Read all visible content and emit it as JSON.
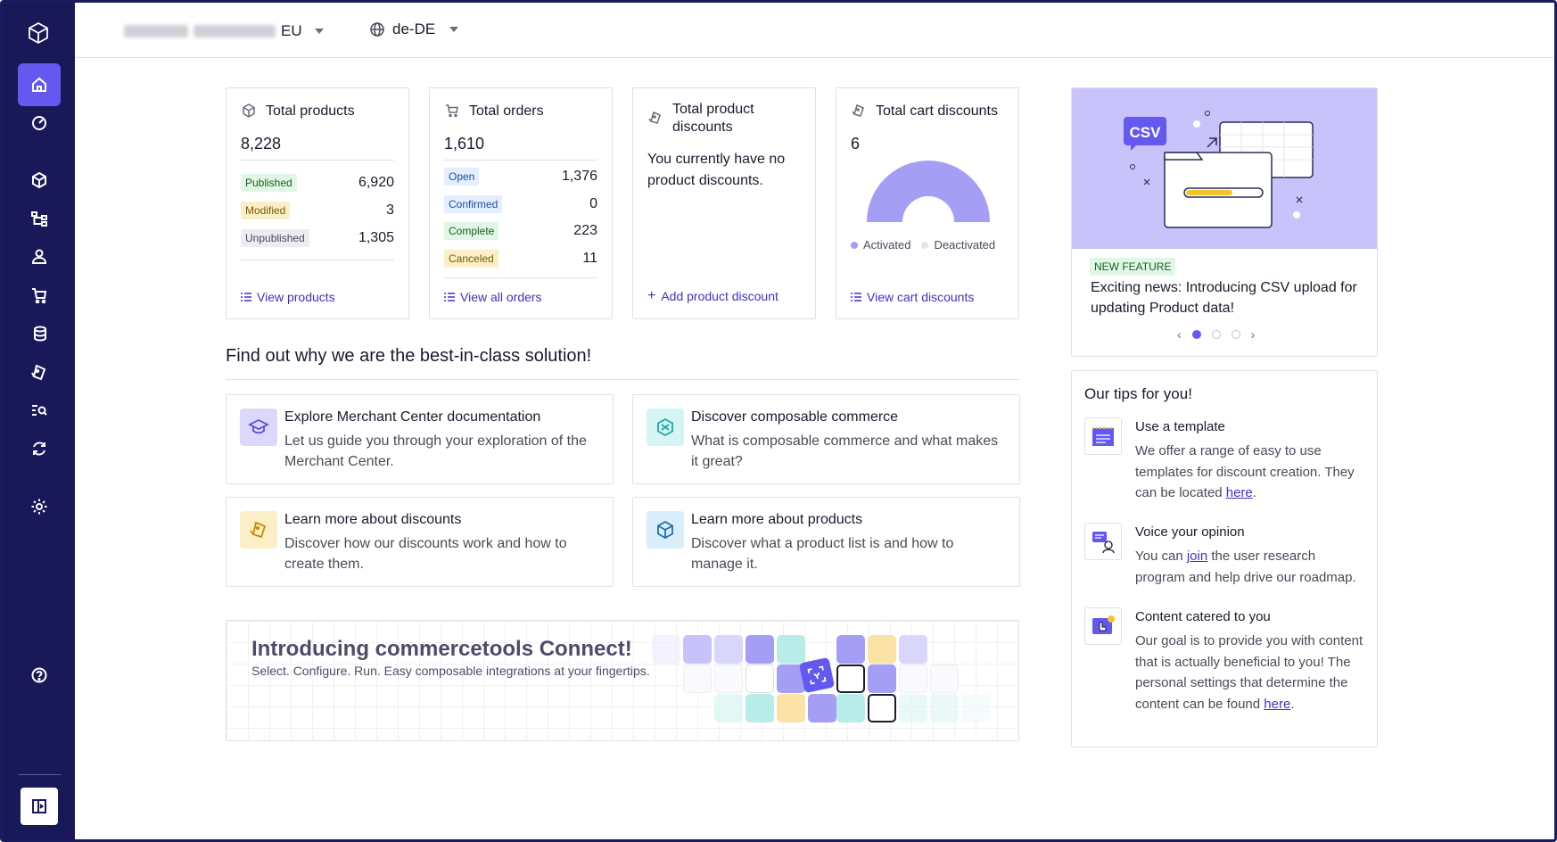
{
  "topbar": {
    "project_suffix": "EU",
    "locale": "de-DE"
  },
  "stats": {
    "products": {
      "title": "Total products",
      "total": "8,228",
      "rows": [
        {
          "label": "Published",
          "value": "6,920"
        },
        {
          "label": "Modified",
          "value": "3"
        },
        {
          "label": "Unpublished",
          "value": "1,305"
        }
      ],
      "link": "View products"
    },
    "orders": {
      "title": "Total orders",
      "total": "1,610",
      "rows": [
        {
          "label": "Open",
          "value": "1,376"
        },
        {
          "label": "Confirmed",
          "value": "0"
        },
        {
          "label": "Complete",
          "value": "223"
        },
        {
          "label": "Canceled",
          "value": "11"
        }
      ],
      "link": "View all orders"
    },
    "product_discounts": {
      "title_line1": "Total product",
      "title_line2": "discounts",
      "text": "You currently have no product discounts.",
      "link": "Add product discount"
    },
    "cart_discounts": {
      "title": "Total cart discounts",
      "total": "6",
      "legend_activated": "Activated",
      "legend_deactivated": "Deactivated",
      "link": "View cart discounts",
      "activated_fraction": 1.0
    }
  },
  "section": {
    "title": "Find out why we are the best-in-class solution!"
  },
  "info_cards": [
    {
      "title": "Explore Merchant Center documentation",
      "desc": "Let us guide you through your exploration of the Merchant Center."
    },
    {
      "title": "Discover composable commerce",
      "desc": "What is composable commerce and what makes it great?"
    },
    {
      "title": "Learn more about discounts",
      "desc": "Discover how our discounts work and how to create them."
    },
    {
      "title": "Learn more about products",
      "desc": "Discover what a product list is and how to manage it."
    }
  ],
  "connect": {
    "title": "Introducing commercetools Connect!",
    "subtitle": "Select. Configure. Run. Easy composable integrations at your fingertips."
  },
  "promo": {
    "image_label": "CSV",
    "badge": "NEW FEATURE",
    "text": "Exciting news: Introducing CSV upload for updating Product data!",
    "current_slide": 1,
    "slide_count": 3
  },
  "tips": {
    "title": "Our tips for you!",
    "items": [
      {
        "title": "Use a template",
        "desc_before": "We offer a range of easy to use templates for discount creation. They can be located ",
        "link": "here",
        "desc_after": "."
      },
      {
        "title": "Voice your opinion",
        "desc_before": "You can ",
        "link": "join",
        "desc_after": " the user research program and help drive our roadmap."
      },
      {
        "title": "Content catered to you",
        "desc_before": "Our goal is to provide you with content that is actually beneficial to you! The personal settings that determine the content can be found ",
        "link": "here",
        "desc_after": "."
      }
    ]
  },
  "colors": {
    "sidebar_bg": "#19195a",
    "accent": "#6359f0",
    "link": "#3d33c4",
    "promo_bg": "#c8c4fb"
  }
}
